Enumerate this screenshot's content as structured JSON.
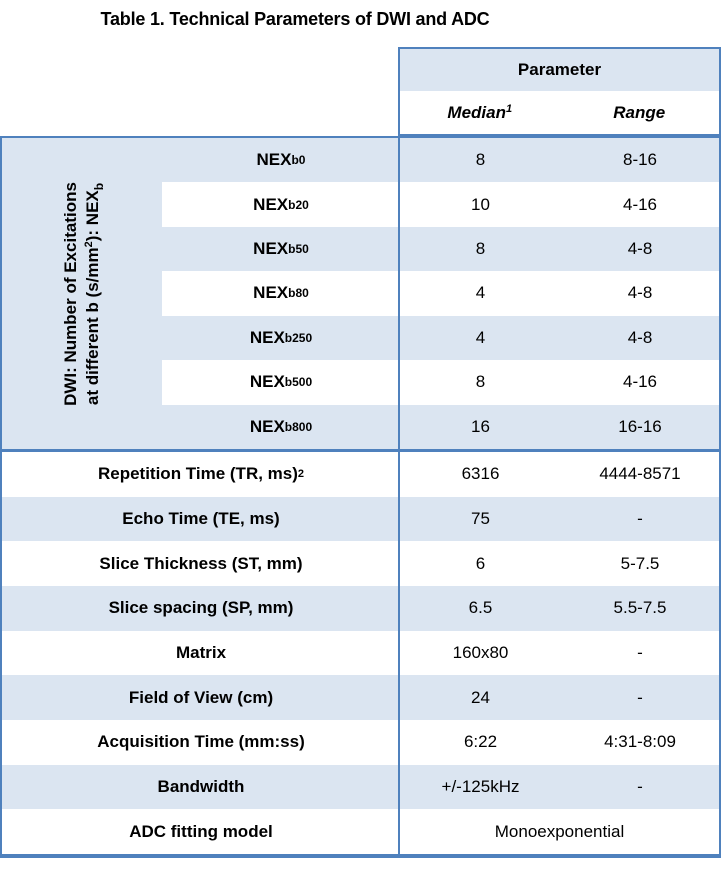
{
  "title": "Table 1. Technical Parameters of DWI and ADC",
  "colors": {
    "fill_blue": "#dbe5f1",
    "border_blue": "#4f81bd",
    "border_light": "#95b3d7",
    "text": "#000000"
  },
  "header": {
    "group_label": "Parameter",
    "median_label": "Median",
    "median_sup": "1",
    "range_label": "Range"
  },
  "dwi_group": {
    "vertical_label_line1": "DWI: Number of Excitations",
    "vertical_label_line2_pre": "at different b (s/mm",
    "vertical_label_line2_sup": "2",
    "vertical_label_line2_mid": "): NEX",
    "vertical_label_line2_sub": "b",
    "rows": [
      {
        "base": "NEX",
        "sub": "b0",
        "median": "8",
        "range": "8-16"
      },
      {
        "base": "NEX",
        "sub": "b20",
        "median": "10",
        "range": "4-16"
      },
      {
        "base": "NEX",
        "sub": "b50",
        "median": "8",
        "range": "4-8"
      },
      {
        "base": "NEX",
        "sub": "b80",
        "median": "4",
        "range": "4-8"
      },
      {
        "base": "NEX",
        "sub": "b250",
        "median": "4",
        "range": "4-8"
      },
      {
        "base": "NEX",
        "sub": "b500",
        "median": "8",
        "range": "4-16"
      },
      {
        "base": "NEX",
        "sub": "b800",
        "median": "16",
        "range": "16-16"
      }
    ]
  },
  "param_rows": [
    {
      "label": "Repetition Time (TR, ms)",
      "sup": "2",
      "median": "6316",
      "range": "4444-8571"
    },
    {
      "label": "Echo Time (TE, ms)",
      "median": "75",
      "range": "-"
    },
    {
      "label": "Slice Thickness (ST, mm)",
      "median": "6",
      "range": "5-7.5"
    },
    {
      "label": "Slice spacing (SP, mm)",
      "median": "6.5",
      "range": "5.5-7.5"
    },
    {
      "label": "Matrix",
      "median": "160x80",
      "range": "-"
    },
    {
      "label": "Field of View (cm)",
      "median": "24",
      "range": "-"
    },
    {
      "label": "Acquisition Time (mm:ss)",
      "median": "6:22",
      "range": "4:31-8:09"
    },
    {
      "label": "Bandwidth",
      "median": "+/-125kHz",
      "range": "-"
    }
  ],
  "adc_row": {
    "label": "ADC fitting model",
    "value": "Monoexponential"
  }
}
